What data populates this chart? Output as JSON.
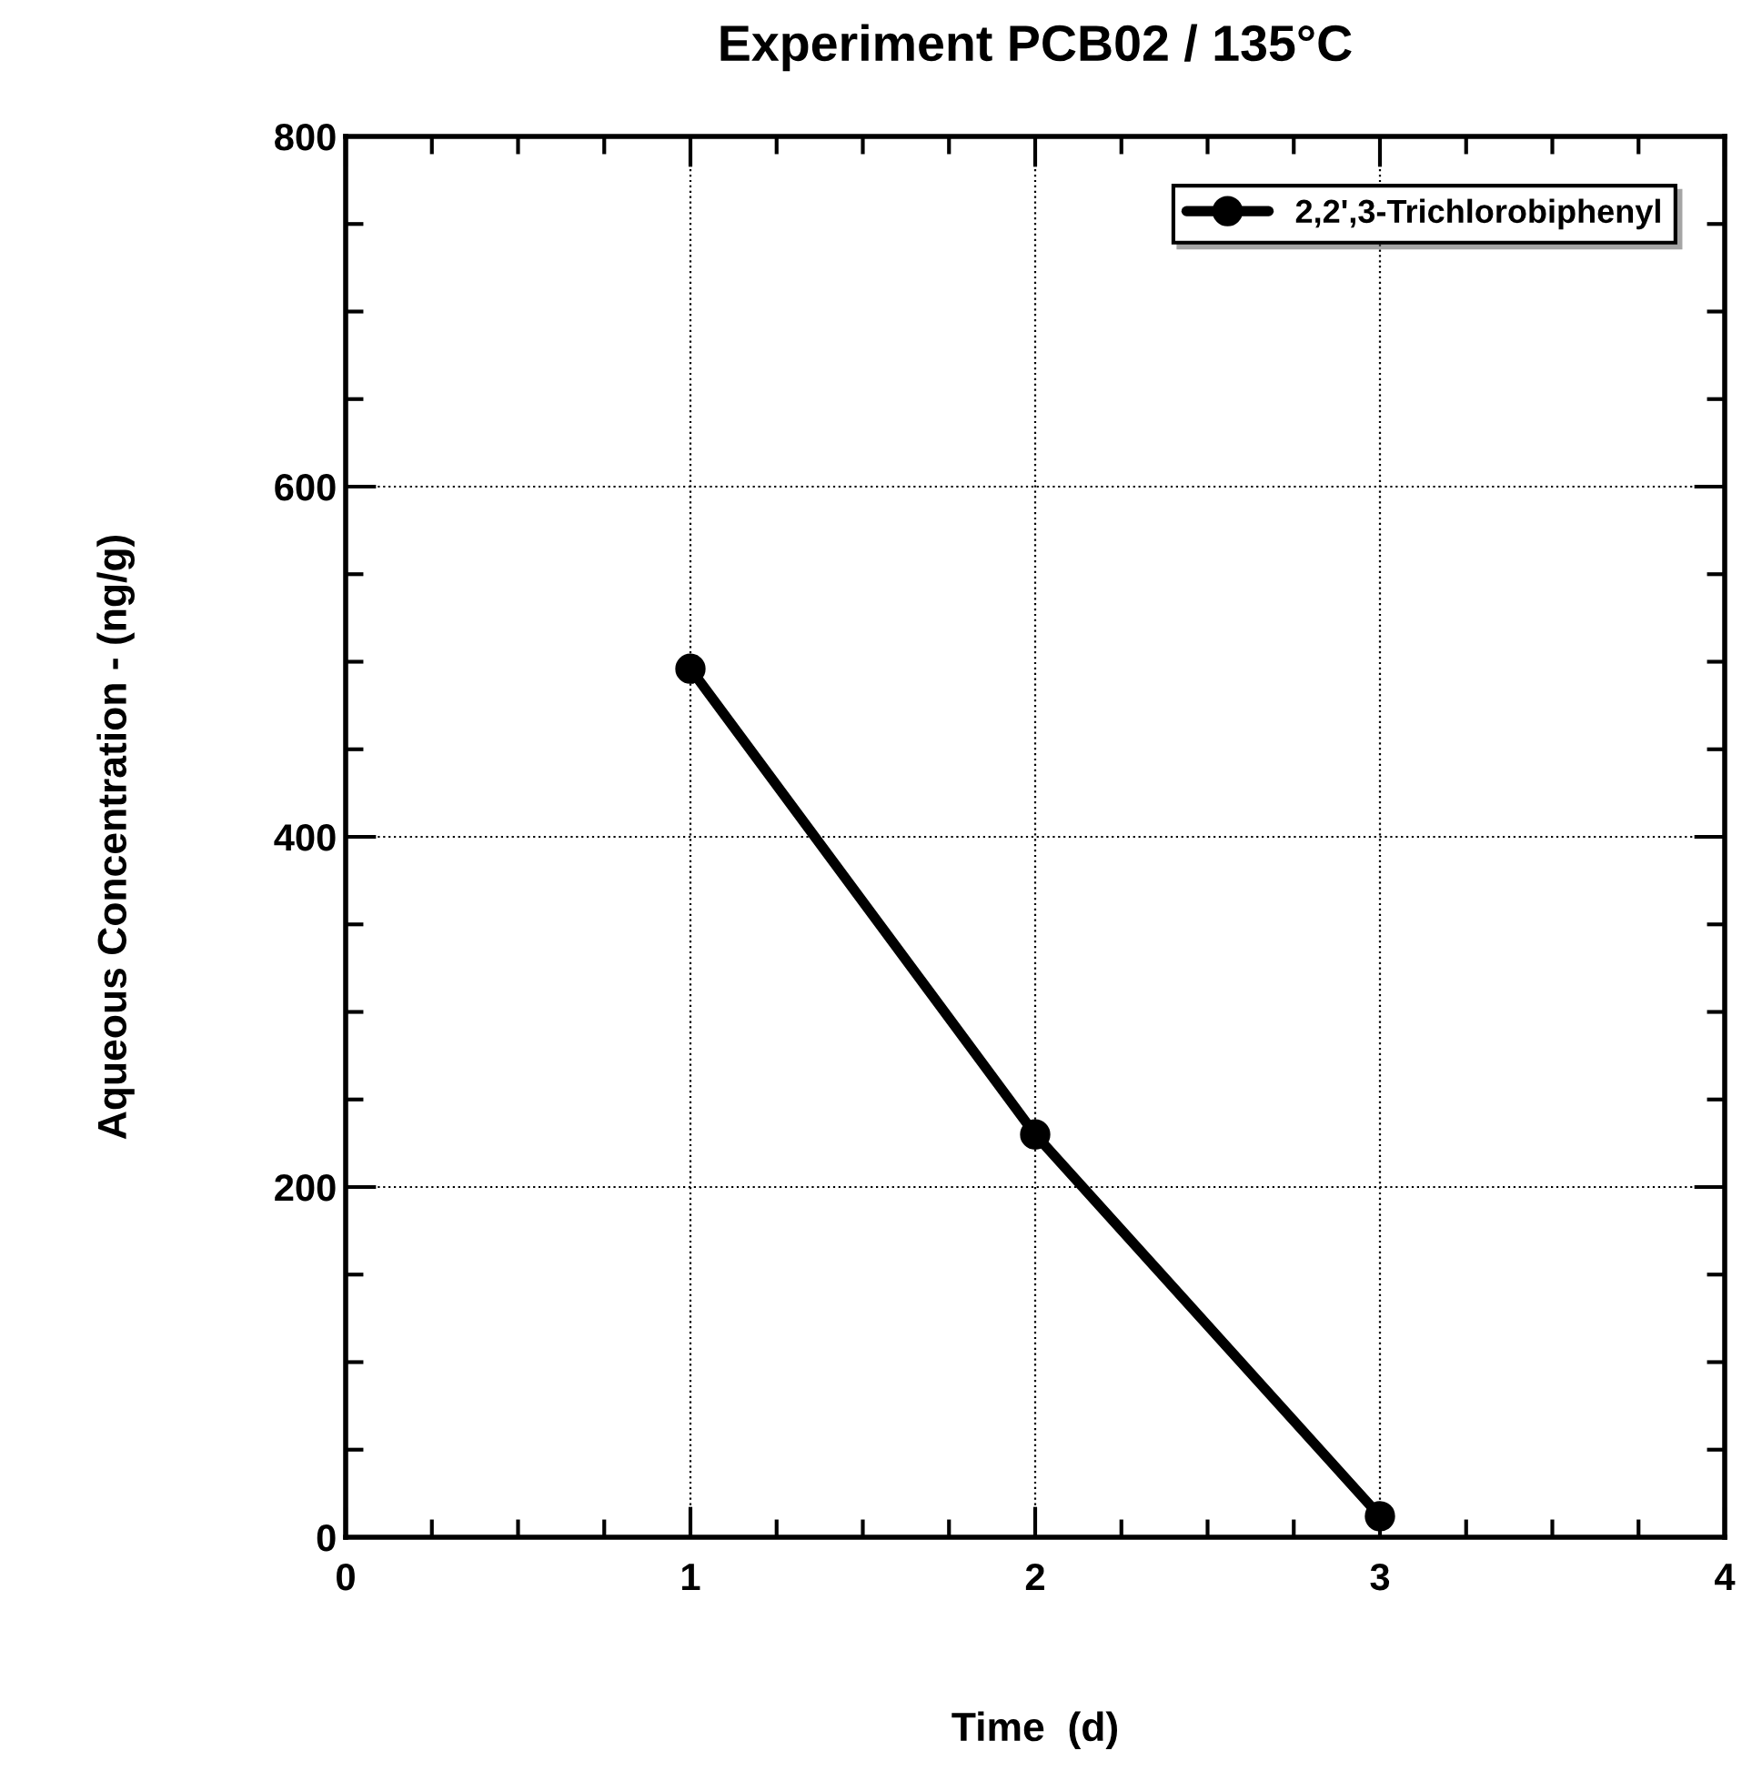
{
  "chart_data": {
    "type": "line",
    "title": "Experiment PCB02 / 135°C",
    "xlabel": "Time  (d)",
    "ylabel": "Aqueous Concentration - (ng/g)",
    "x": [
      1,
      2,
      3
    ],
    "series": [
      {
        "name": "2,2',3-Trichlorobiphenyl",
        "color": "#000000",
        "values": [
          496,
          230,
          12
        ]
      }
    ],
    "xlim": [
      0,
      4
    ],
    "xticks": [
      0,
      1,
      2,
      3,
      4
    ],
    "ylim": [
      0,
      800
    ],
    "yticks": [
      0,
      200,
      400,
      600,
      800
    ],
    "grid": true,
    "legend": "top right",
    "marker": "circle",
    "line_style": "solid"
  }
}
